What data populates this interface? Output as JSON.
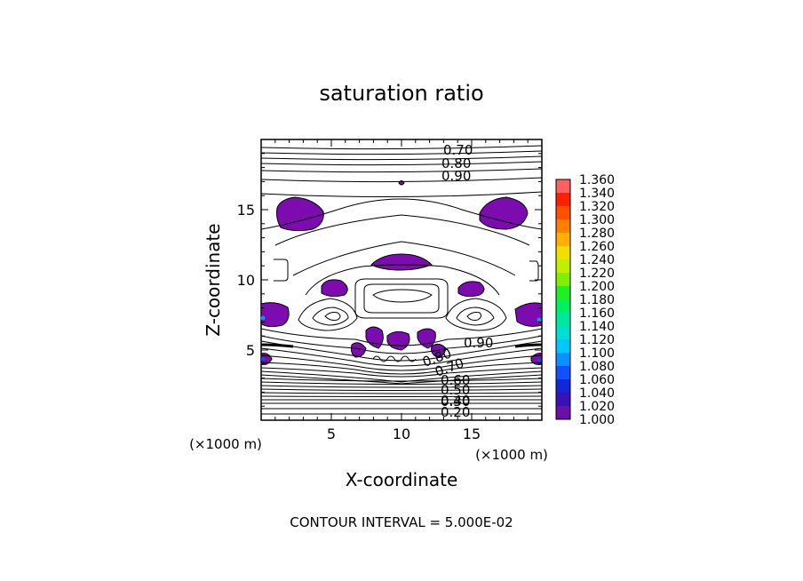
{
  "chart_data": {
    "type": "contour",
    "title": "saturation ratio",
    "xlabel": "X-coordinate",
    "ylabel": "Z-coordinate",
    "x_unit_label": "(×1000 m)",
    "y_unit_label": "(×1000 m)",
    "xlim": [
      0,
      20
    ],
    "ylim": [
      0,
      20
    ],
    "x_ticks": [
      5,
      10,
      15
    ],
    "y_ticks": [
      5,
      10,
      15
    ],
    "footer": "CONTOUR INTERVAL = 5.000E-02",
    "contour_labels": [
      "0.70",
      "0.80",
      "0.90",
      "0.20",
      "0.30",
      "0.40",
      "0.50",
      "0.60",
      "0.70",
      "0.80",
      "0.90"
    ],
    "colorbar": {
      "levels": [
        "1.000",
        "1.020",
        "1.040",
        "1.060",
        "1.080",
        "1.100",
        "1.120",
        "1.140",
        "1.160",
        "1.180",
        "1.200",
        "1.220",
        "1.240",
        "1.260",
        "1.280",
        "1.300",
        "1.320",
        "1.340",
        "1.360"
      ],
      "colors": [
        "#6a0fa8",
        "#3a10b8",
        "#1028d8",
        "#1050ff",
        "#0a90ff",
        "#00c8ff",
        "#00e0d0",
        "#00e8a0",
        "#00f060",
        "#20f020",
        "#80f000",
        "#c0f000",
        "#f0e000",
        "#ffb000",
        "#ff8000",
        "#ff5000",
        "#ff2000",
        "#ff6060"
      ]
    },
    "fill_color": "#7d0cb0"
  }
}
